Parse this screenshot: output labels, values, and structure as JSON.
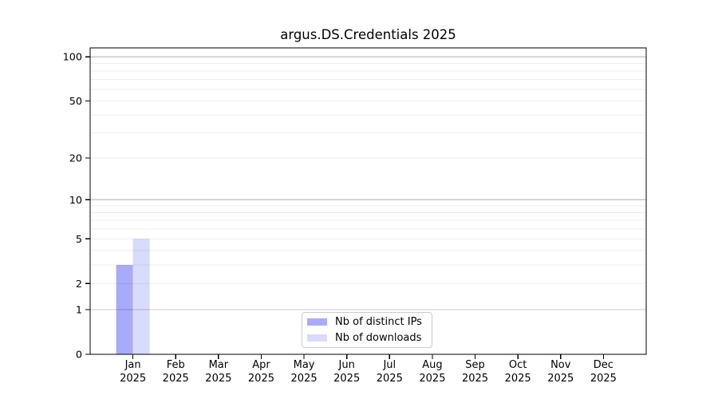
{
  "chart_data": {
    "type": "bar",
    "title": "argus.DS.Credentials 2025",
    "year_label": "2025",
    "categories": [
      "Jan",
      "Feb",
      "Mar",
      "Apr",
      "May",
      "Jun",
      "Jul",
      "Aug",
      "Sep",
      "Oct",
      "Nov",
      "Dec"
    ],
    "series": [
      {
        "name": "Nb of distinct IPs",
        "color": "#a8aafa",
        "values": [
          3,
          0,
          0,
          0,
          0,
          0,
          0,
          0,
          0,
          0,
          0,
          0
        ]
      },
      {
        "name": "Nb of downloads",
        "color": "#d9dbfb",
        "values": [
          5,
          0,
          0,
          0,
          0,
          0,
          0,
          0,
          0,
          0,
          0,
          0
        ]
      }
    ],
    "yscale": "log1p",
    "ylim": [
      0,
      115
    ],
    "yticks": [
      100,
      50,
      20,
      10,
      5,
      2,
      1,
      0
    ],
    "major_gridlines": [
      1,
      10,
      100
    ],
    "minor_gridlines": [
      2,
      3,
      4,
      5,
      6,
      7,
      8,
      9,
      20,
      30,
      40,
      50,
      60,
      70,
      80,
      90
    ],
    "grid": true,
    "legend_position": "lower center",
    "colors": {
      "axis": "#000000",
      "tick_text": "#000000",
      "major_grid_rgba": "rgba(0,0,0,0.21)",
      "minor_grid_rgba": "rgba(0,0,0,0.07)"
    }
  }
}
